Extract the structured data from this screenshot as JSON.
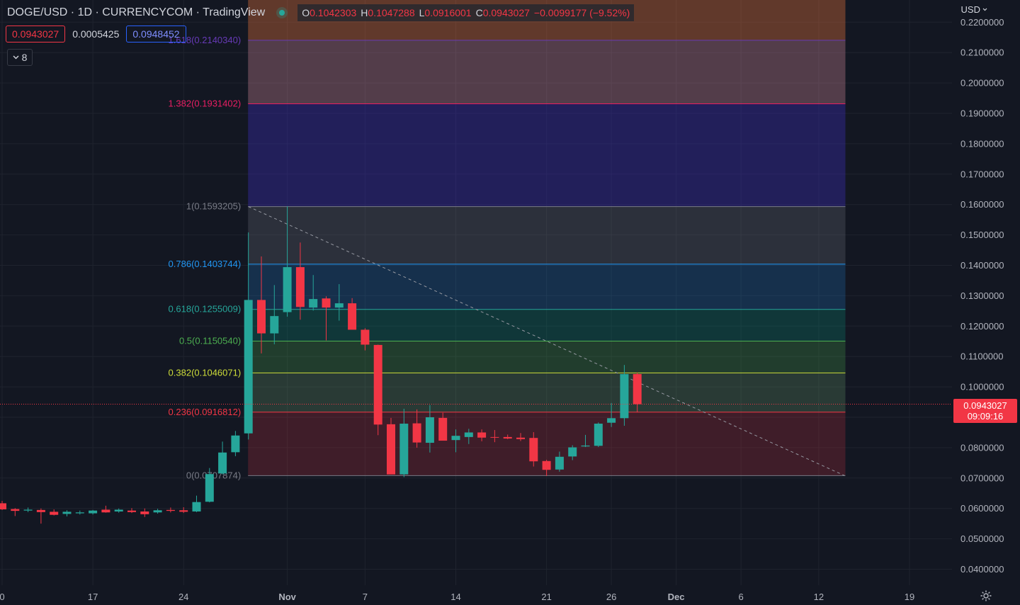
{
  "header": {
    "symbol_title": "DOGE/USD · 1D · CURRENCYCOM · TradingView",
    "ohlc": {
      "o_label": "O",
      "o_value": "0.1042303",
      "h_label": "H",
      "h_value": "0.1047288",
      "l_label": "L",
      "l_value": "0.0916001",
      "c_label": "C",
      "c_value": "0.0943027",
      "change": "−0.0099177 (−9.52%)"
    },
    "bid": "0.0943027",
    "spread": "0.0005425",
    "ask": "0.0948452",
    "indicators_count": "8"
  },
  "currency_label": "USD",
  "last_price": {
    "price": "0.0943027",
    "countdown": "09:09:16"
  },
  "colors": {
    "up": "#26a69a",
    "down": "#f23645",
    "background": "#131722"
  },
  "chart_data": {
    "type": "candlestick",
    "y_axis": {
      "min": 0.035,
      "max": 0.224,
      "ticks": [
        0.04,
        0.05,
        0.06,
        0.07,
        0.08,
        0.09,
        0.1,
        0.11,
        0.12,
        0.13,
        0.14,
        0.15,
        0.16,
        0.17,
        0.18,
        0.19,
        0.2,
        0.21,
        0.22
      ],
      "tick_labels": [
        "0.0400000",
        "0.0500000",
        "0.0600000",
        "0.0700000",
        "0.0800000",
        "0.0900000",
        "0.1000000",
        "0.1100000",
        "0.1200000",
        "0.1300000",
        "0.1400000",
        "0.1500000",
        "0.1600000",
        "0.1700000",
        "0.1800000",
        "0.1900000",
        "0.2000000",
        "0.2100000",
        "0.2200000"
      ]
    },
    "x_axis": {
      "tick_labels": [
        {
          "label": "0",
          "i": 0
        },
        {
          "label": "17",
          "i": 7
        },
        {
          "label": "24",
          "i": 14
        },
        {
          "label": "Nov",
          "i": 22
        },
        {
          "label": "7",
          "i": 28
        },
        {
          "label": "14",
          "i": 35
        },
        {
          "label": "21",
          "i": 42
        },
        {
          "label": "26",
          "i": 47
        },
        {
          "label": "Dec",
          "i": 52
        },
        {
          "label": "6",
          "i": 57
        },
        {
          "label": "12",
          "i": 63
        },
        {
          "label": "19",
          "i": 70
        }
      ]
    },
    "candles": [
      {
        "o": 0.0617,
        "h": 0.0625,
        "l": 0.0595,
        "c": 0.0597
      },
      {
        "o": 0.0598,
        "h": 0.0601,
        "l": 0.0575,
        "c": 0.0592
      },
      {
        "o": 0.0593,
        "h": 0.0603,
        "l": 0.0588,
        "c": 0.0596
      },
      {
        "o": 0.0595,
        "h": 0.06,
        "l": 0.055,
        "c": 0.0588
      },
      {
        "o": 0.0589,
        "h": 0.0597,
        "l": 0.0577,
        "c": 0.0579
      },
      {
        "o": 0.0582,
        "h": 0.0594,
        "l": 0.0574,
        "c": 0.0589
      },
      {
        "o": 0.0584,
        "h": 0.0593,
        "l": 0.058,
        "c": 0.0587
      },
      {
        "o": 0.0584,
        "h": 0.0595,
        "l": 0.058,
        "c": 0.0593
      },
      {
        "o": 0.0596,
        "h": 0.0609,
        "l": 0.0586,
        "c": 0.0587
      },
      {
        "o": 0.059,
        "h": 0.06,
        "l": 0.0586,
        "c": 0.0596
      },
      {
        "o": 0.0593,
        "h": 0.0601,
        "l": 0.0585,
        "c": 0.0588
      },
      {
        "o": 0.059,
        "h": 0.06,
        "l": 0.0572,
        "c": 0.0581
      },
      {
        "o": 0.0587,
        "h": 0.0599,
        "l": 0.0583,
        "c": 0.0594
      },
      {
        "o": 0.0595,
        "h": 0.0603,
        "l": 0.0587,
        "c": 0.0592
      },
      {
        "o": 0.0594,
        "h": 0.0604,
        "l": 0.0585,
        "c": 0.0589
      },
      {
        "o": 0.059,
        "h": 0.0642,
        "l": 0.0588,
        "c": 0.0621
      },
      {
        "o": 0.0622,
        "h": 0.0733,
        "l": 0.062,
        "c": 0.0713
      },
      {
        "o": 0.0715,
        "h": 0.082,
        "l": 0.0712,
        "c": 0.0784
      },
      {
        "o": 0.0785,
        "h": 0.0855,
        "l": 0.0772,
        "c": 0.084
      },
      {
        "o": 0.0847,
        "h": 0.1508,
        "l": 0.0827,
        "c": 0.1286
      },
      {
        "o": 0.1286,
        "h": 0.1429,
        "l": 0.111,
        "c": 0.1176
      },
      {
        "o": 0.1176,
        "h": 0.1335,
        "l": 0.114,
        "c": 0.1233
      },
      {
        "o": 0.1246,
        "h": 0.1594,
        "l": 0.1231,
        "c": 0.1394
      },
      {
        "o": 0.1394,
        "h": 0.1475,
        "l": 0.1221,
        "c": 0.1263
      },
      {
        "o": 0.1261,
        "h": 0.1368,
        "l": 0.1251,
        "c": 0.1289
      },
      {
        "o": 0.1291,
        "h": 0.1298,
        "l": 0.1153,
        "c": 0.1261
      },
      {
        "o": 0.1261,
        "h": 0.1338,
        "l": 0.1218,
        "c": 0.1275
      },
      {
        "o": 0.1275,
        "h": 0.1292,
        "l": 0.1189,
        "c": 0.1188
      },
      {
        "o": 0.1188,
        "h": 0.1193,
        "l": 0.112,
        "c": 0.1139
      },
      {
        "o": 0.1138,
        "h": 0.1139,
        "l": 0.0841,
        "c": 0.0876
      },
      {
        "o": 0.0877,
        "h": 0.0898,
        "l": 0.0713,
        "c": 0.0712
      },
      {
        "o": 0.0712,
        "h": 0.0928,
        "l": 0.0703,
        "c": 0.0879
      },
      {
        "o": 0.088,
        "h": 0.0926,
        "l": 0.08,
        "c": 0.0817
      },
      {
        "o": 0.0816,
        "h": 0.094,
        "l": 0.0784,
        "c": 0.09
      },
      {
        "o": 0.0898,
        "h": 0.0915,
        "l": 0.0828,
        "c": 0.0823
      },
      {
        "o": 0.0825,
        "h": 0.086,
        "l": 0.0785,
        "c": 0.0839
      },
      {
        "o": 0.0835,
        "h": 0.0862,
        "l": 0.0812,
        "c": 0.085
      },
      {
        "o": 0.085,
        "h": 0.086,
        "l": 0.0821,
        "c": 0.0833
      },
      {
        "o": 0.0835,
        "h": 0.0858,
        "l": 0.0818,
        "c": 0.0834
      },
      {
        "o": 0.0835,
        "h": 0.0843,
        "l": 0.0828,
        "c": 0.083
      },
      {
        "o": 0.0833,
        "h": 0.0848,
        "l": 0.0822,
        "c": 0.0828
      },
      {
        "o": 0.0832,
        "h": 0.0851,
        "l": 0.0738,
        "c": 0.0755
      },
      {
        "o": 0.0756,
        "h": 0.076,
        "l": 0.0707,
        "c": 0.0727
      },
      {
        "o": 0.0728,
        "h": 0.0787,
        "l": 0.0721,
        "c": 0.077
      },
      {
        "o": 0.0771,
        "h": 0.0808,
        "l": 0.0759,
        "c": 0.0801
      },
      {
        "o": 0.0804,
        "h": 0.0842,
        "l": 0.0802,
        "c": 0.0807
      },
      {
        "o": 0.0806,
        "h": 0.0883,
        "l": 0.0802,
        "c": 0.0879
      },
      {
        "o": 0.0882,
        "h": 0.0947,
        "l": 0.0868,
        "c": 0.0897
      },
      {
        "o": 0.0897,
        "h": 0.1072,
        "l": 0.0872,
        "c": 0.1042
      },
      {
        "o": 0.1042303,
        "h": 0.1047288,
        "l": 0.0916001,
        "c": 0.0943027
      }
    ],
    "fibonacci": {
      "levels": [
        {
          "ratio": "0",
          "price": 0.0707874,
          "label": "0(0.0707874)",
          "color": "#787b86",
          "fill": "rgba(242,54,69,0.20)"
        },
        {
          "ratio": "0.236",
          "price": 0.0916812,
          "label": "0.236(0.0916812)",
          "color": "#f23645",
          "fill": "rgba(129,199,132,0.20)"
        },
        {
          "ratio": "0.382",
          "price": 0.1046071,
          "label": "0.382(0.1046071)",
          "color": "#cddc39",
          "fill": "rgba(76,175,80,0.25)"
        },
        {
          "ratio": "0.5",
          "price": 0.115054,
          "label": "0.5(0.1150540)",
          "color": "#4caf50",
          "fill": "rgba(8,153,129,0.25)"
        },
        {
          "ratio": "0.618",
          "price": 0.1255009,
          "label": "0.618(0.1255009)",
          "color": "#26a69a",
          "fill": "rgba(33,150,243,0.20)"
        },
        {
          "ratio": "0.786",
          "price": 0.1403744,
          "label": "0.786(0.1403744)",
          "color": "#2196f3",
          "fill": "rgba(120,123,134,0.25)"
        },
        {
          "ratio": "1",
          "price": 0.1593205,
          "label": "1(0.1593205)",
          "color": "#787b86",
          "fill": "rgba(63,46,196,0.35)"
        },
        {
          "ratio": "1.382",
          "price": 0.1931402,
          "label": "1.382(0.1931402)",
          "color": "#e91e63",
          "fill": "rgba(232,150,170,0.30)"
        },
        {
          "ratio": "1.618",
          "price": 0.214034,
          "label": "1.618(0.2140340)",
          "color": "#673ab7",
          "fill": "rgba(243,120,60,0.35)"
        }
      ],
      "start_index": 19,
      "end_index": 65,
      "trend_from": {
        "i": 19,
        "price": 0.1593205
      },
      "trend_to": {
        "i": 65,
        "price": 0.0707874
      }
    }
  }
}
